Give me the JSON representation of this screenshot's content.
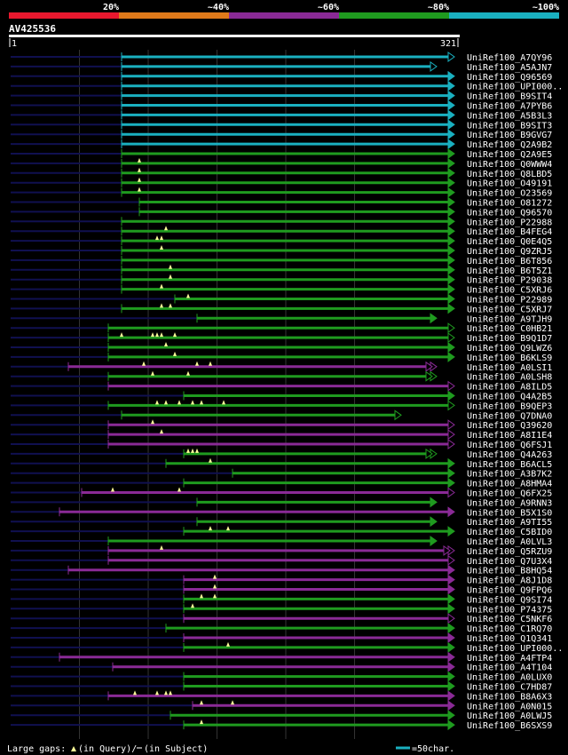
{
  "chart_data": {
    "type": "alignment-overview",
    "title": "AV425536",
    "query_length": 321,
    "axis": {
      "start_label": "1",
      "end_label": "321"
    },
    "legend": {
      "scale_labels": [
        "20%",
        "~40%",
        "~60%",
        "~80%",
        "~100%"
      ],
      "scale_colors": [
        "#e8182e",
        "#e07a1a",
        "#8a2a96",
        "#1f9b1f",
        "#1ab0c0"
      ],
      "gaps_label": "Large gaps:",
      "gap_query_label": "(in Query)/",
      "gap_subject_label": "(in Subject)",
      "scale_bar_label": "=50char."
    },
    "colors": {
      "cyan": "#1ab0c0",
      "green": "#1f9b1f",
      "purple": "#8a2a96",
      "gap": "#101050",
      "ruler": "#ffffff"
    },
    "hits": [
      {
        "label": "UniRef100_A7QY96",
        "color": "cyan",
        "start": 0.25,
        "end": 1.0,
        "closed": true
      },
      {
        "label": "UniRef100_A5AJN7",
        "color": "cyan",
        "start": 0.25,
        "end": 0.96,
        "closed": true
      },
      {
        "label": "UniRef100_Q96569",
        "color": "cyan",
        "start": 0.25,
        "end": 1.0
      },
      {
        "label": "UniRef100_UPI000..",
        "color": "cyan",
        "start": 0.25,
        "end": 1.0
      },
      {
        "label": "UniRef100_B9SIT4",
        "color": "cyan",
        "start": 0.25,
        "end": 1.0
      },
      {
        "label": "UniRef100_A7PYB6",
        "color": "cyan",
        "start": 0.25,
        "end": 1.0
      },
      {
        "label": "UniRef100_A5B3L3",
        "color": "cyan",
        "start": 0.25,
        "end": 1.0
      },
      {
        "label": "UniRef100_B9SIT3",
        "color": "cyan",
        "start": 0.25,
        "end": 1.0
      },
      {
        "label": "UniRef100_B9GVG7",
        "color": "cyan",
        "start": 0.25,
        "end": 1.0
      },
      {
        "label": "UniRef100_Q2A9B2",
        "color": "cyan",
        "start": 0.25,
        "end": 1.0
      },
      {
        "label": "UniRef100_Q2A9E5",
        "color": "green",
        "start": 0.25,
        "end": 1.0
      },
      {
        "label": "UniRef100_Q0WWW4",
        "color": "green",
        "start": 0.25,
        "end": 1.0,
        "marks": [
          0.29
        ]
      },
      {
        "label": "UniRef100_Q8LBD5",
        "color": "green",
        "start": 0.25,
        "end": 1.0,
        "marks": [
          0.29
        ]
      },
      {
        "label": "UniRef100_O49191",
        "color": "green",
        "start": 0.25,
        "end": 1.0,
        "marks": [
          0.29
        ]
      },
      {
        "label": "UniRef100_O23569",
        "color": "green",
        "start": 0.25,
        "end": 1.0,
        "marks": [
          0.29
        ]
      },
      {
        "label": "UniRef100_O81272",
        "color": "green",
        "start": 0.29,
        "end": 1.0
      },
      {
        "label": "UniRef100_Q96570",
        "color": "green",
        "start": 0.29,
        "end": 1.0
      },
      {
        "label": "UniRef100_P22988",
        "color": "green",
        "start": 0.25,
        "end": 1.0
      },
      {
        "label": "UniRef100_B4FEG4",
        "color": "green",
        "start": 0.25,
        "end": 1.0,
        "marks": [
          0.35
        ]
      },
      {
        "label": "UniRef100_Q0E4Q5",
        "color": "green",
        "start": 0.25,
        "end": 1.0,
        "marks": [
          0.33,
          0.34
        ]
      },
      {
        "label": "UniRef100_Q9ZRJ5",
        "color": "green",
        "start": 0.25,
        "end": 1.0,
        "marks": [
          0.34
        ]
      },
      {
        "label": "UniRef100_B6T856",
        "color": "green",
        "start": 0.25,
        "end": 1.0
      },
      {
        "label": "UniRef100_B6T5Z1",
        "color": "green",
        "start": 0.25,
        "end": 1.0,
        "marks": [
          0.36
        ]
      },
      {
        "label": "UniRef100_P29038",
        "color": "green",
        "start": 0.25,
        "end": 1.0,
        "marks": [
          0.36
        ]
      },
      {
        "label": "UniRef100_C5XRJ6",
        "color": "green",
        "start": 0.25,
        "end": 1.0,
        "marks": [
          0.34
        ]
      },
      {
        "label": "UniRef100_P22989",
        "color": "green",
        "start": 0.37,
        "end": 1.0,
        "marks": [
          0.4
        ]
      },
      {
        "label": "UniRef100_C5XRJ7",
        "color": "green",
        "start": 0.25,
        "end": 1.0,
        "marks": [
          0.34,
          0.36
        ]
      },
      {
        "label": "UniRef100_A9TJH9",
        "color": "green",
        "start": 0.42,
        "end": 0.96
      },
      {
        "label": "UniRef100_C0HB21",
        "color": "green",
        "start": 0.22,
        "end": 1.0,
        "closed": true
      },
      {
        "label": "UniRef100_B9Q1D7",
        "color": "green",
        "start": 0.22,
        "end": 1.0,
        "closed": true,
        "marks": [
          0.25,
          0.32,
          0.33,
          0.34,
          0.37
        ]
      },
      {
        "label": "UniRef100_Q9LWZ6",
        "color": "green",
        "start": 0.22,
        "end": 1.0,
        "marks": [
          0.35
        ]
      },
      {
        "label": "UniRef100_B6KLS9",
        "color": "green",
        "start": 0.22,
        "end": 1.0,
        "marks": [
          0.37
        ]
      },
      {
        "label": "UniRef100_A0LSI1",
        "color": "purple",
        "start": 0.13,
        "end": 0.96,
        "closed": true,
        "double": true,
        "marks": [
          0.3,
          0.42,
          0.45
        ]
      },
      {
        "label": "UniRef100_A0LSH8",
        "color": "green",
        "start": 0.22,
        "end": 0.96,
        "closed": true,
        "double": true,
        "marks": [
          0.32,
          0.4
        ]
      },
      {
        "label": "UniRef100_A8ILD5",
        "color": "purple",
        "start": 0.22,
        "end": 1.0,
        "closed": true
      },
      {
        "label": "UniRef100_Q4A2B5",
        "color": "green",
        "start": 0.39,
        "end": 1.0
      },
      {
        "label": "UniRef100_B9QEP3",
        "color": "green",
        "start": 0.22,
        "end": 1.0,
        "closed": true,
        "marks": [
          0.33,
          0.35,
          0.38,
          0.41,
          0.43,
          0.48
        ]
      },
      {
        "label": "UniRef100_Q7DNA0",
        "color": "green",
        "start": 0.25,
        "end": 0.88,
        "closed": true
      },
      {
        "label": "UniRef100_Q39620",
        "color": "purple",
        "start": 0.22,
        "end": 1.0,
        "closed": true,
        "marks": [
          0.32
        ]
      },
      {
        "label": "UniRef100_A8I1E4",
        "color": "purple",
        "start": 0.22,
        "end": 1.0,
        "closed": true,
        "marks": [
          0.34
        ]
      },
      {
        "label": "UniRef100_Q6FSJ1",
        "color": "purple",
        "start": 0.22,
        "end": 1.0,
        "closed": true
      },
      {
        "label": "UniRef100_Q4A263",
        "color": "green",
        "start": 0.39,
        "end": 0.96,
        "closed": true,
        "double": true,
        "marks": [
          0.4,
          0.41,
          0.42
        ]
      },
      {
        "label": "UniRef100_B6ACL5",
        "color": "green",
        "start": 0.35,
        "end": 1.0,
        "marks": [
          0.45
        ]
      },
      {
        "label": "UniRef100_A3B7K2",
        "color": "green",
        "start": 0.5,
        "end": 1.0
      },
      {
        "label": "UniRef100_A8HMA4",
        "color": "green",
        "start": 0.39,
        "end": 1.0
      },
      {
        "label": "UniRef100_Q6FX25",
        "color": "purple",
        "start": 0.16,
        "end": 1.0,
        "closed": true,
        "marks": [
          0.23,
          0.38
        ]
      },
      {
        "label": "UniRef100_A9RNN3",
        "color": "green",
        "start": 0.42,
        "end": 0.96
      },
      {
        "label": "UniRef100_B5X1S0",
        "color": "purple",
        "start": 0.11,
        "end": 1.0
      },
      {
        "label": "UniRef100_A9TI55",
        "color": "green",
        "start": 0.42,
        "end": 0.96
      },
      {
        "label": "UniRef100_C5BID0",
        "color": "green",
        "start": 0.39,
        "end": 1.0,
        "marks": [
          0.45,
          0.49
        ]
      },
      {
        "label": "UniRef100_A0LVL3",
        "color": "green",
        "start": 0.22,
        "end": 0.96
      },
      {
        "label": "UniRef100_Q5RZU9",
        "color": "purple",
        "start": 0.22,
        "end": 1.0,
        "closed": true,
        "double": true,
        "marks": [
          0.34
        ]
      },
      {
        "label": "UniRef100_Q7U3X4",
        "color": "purple",
        "start": 0.22,
        "end": 1.0,
        "closed": true
      },
      {
        "label": "UniRef100_B8HQ54",
        "color": "purple",
        "start": 0.13,
        "end": 1.0
      },
      {
        "label": "UniRef100_A8J1D8",
        "color": "purple",
        "start": 0.39,
        "end": 1.0,
        "marks": [
          0.46
        ]
      },
      {
        "label": "UniRef100_Q9FPQ6",
        "color": "purple",
        "start": 0.39,
        "end": 1.0,
        "marks": [
          0.46
        ]
      },
      {
        "label": "UniRef100_Q9SI74",
        "color": "green",
        "start": 0.39,
        "end": 1.0,
        "marks": [
          0.43,
          0.46
        ]
      },
      {
        "label": "UniRef100_P74375",
        "color": "green",
        "start": 0.39,
        "end": 1.0,
        "marks": [
          0.41
        ]
      },
      {
        "label": "UniRef100_C5NKF6",
        "color": "purple",
        "start": 0.39,
        "end": 1.0,
        "closed": true
      },
      {
        "label": "UniRef100_C1RQ70",
        "color": "green",
        "start": 0.35,
        "end": 1.0
      },
      {
        "label": "UniRef100_Q1Q341",
        "color": "purple",
        "start": 0.39,
        "end": 1.0
      },
      {
        "label": "UniRef100_UPI000..",
        "color": "green",
        "start": 0.39,
        "end": 1.0,
        "marks": [
          0.49
        ]
      },
      {
        "label": "UniRef100_A4FTP4",
        "color": "purple",
        "start": 0.11,
        "end": 1.0
      },
      {
        "label": "UniRef100_A4T104",
        "color": "purple",
        "start": 0.23,
        "end": 1.0
      },
      {
        "label": "UniRef100_A0LUX0",
        "color": "green",
        "start": 0.39,
        "end": 1.0
      },
      {
        "label": "UniRef100_C7HD87",
        "color": "green",
        "start": 0.39,
        "end": 1.0
      },
      {
        "label": "UniRef100_B8A6X3",
        "color": "purple",
        "start": 0.22,
        "end": 1.0,
        "marks": [
          0.28,
          0.33,
          0.35,
          0.36
        ]
      },
      {
        "label": "UniRef100_A0N015",
        "color": "purple",
        "start": 0.41,
        "end": 1.0,
        "marks": [
          0.43,
          0.5
        ]
      },
      {
        "label": "UniRef100_A0LWJ5",
        "color": "green",
        "start": 0.36,
        "end": 1.0
      },
      {
        "label": "UniRef100_B6SXS9",
        "color": "green",
        "start": 0.39,
        "end": 1.0,
        "marks": [
          0.43
        ]
      }
    ]
  }
}
